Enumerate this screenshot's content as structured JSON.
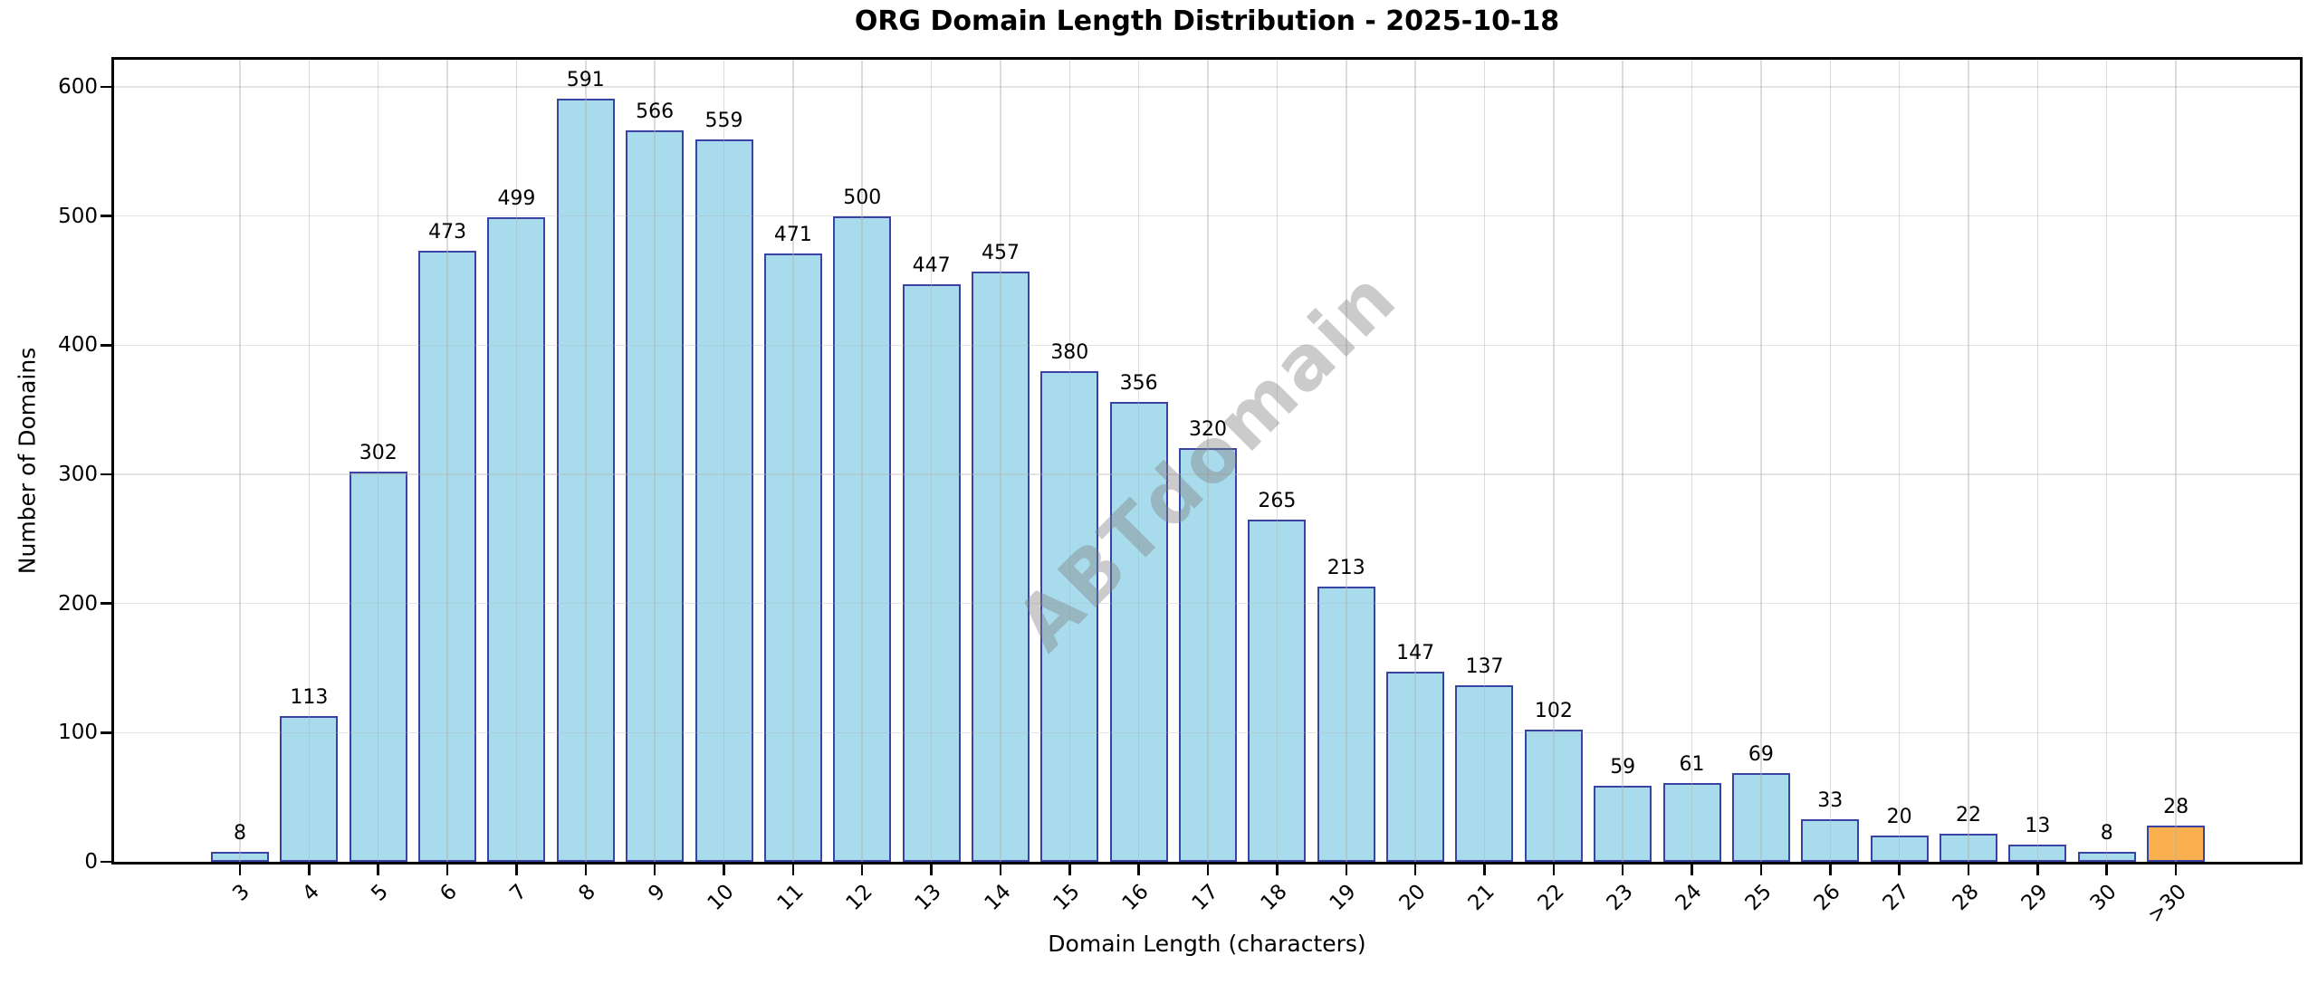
{
  "title": "ORG Domain Length Distribution - 2025-10-18",
  "watermark": "ABTdomain",
  "chart_data": {
    "type": "bar",
    "title": "ORG Domain Length Distribution - 2025-10-18",
    "xlabel": "Domain Length (characters)",
    "ylabel": "Number of Domains",
    "categories": [
      "3",
      "4",
      "5",
      "6",
      "7",
      "8",
      "9",
      "10",
      "11",
      "12",
      "13",
      "14",
      "15",
      "16",
      "17",
      "18",
      "19",
      "20",
      "21",
      "22",
      "23",
      "24",
      "25",
      "26",
      "27",
      "28",
      "29",
      "30",
      ">30"
    ],
    "values": [
      8,
      113,
      302,
      473,
      499,
      591,
      566,
      559,
      471,
      500,
      447,
      457,
      380,
      356,
      320,
      265,
      213,
      147,
      137,
      102,
      59,
      61,
      69,
      33,
      20,
      22,
      13,
      8,
      28
    ],
    "value_labels_shown": true,
    "yticks": [
      0,
      100,
      200,
      300,
      400,
      500,
      600
    ],
    "ylim": [
      0,
      621
    ],
    "grid": true,
    "legend": "none",
    "x_tick_rotation_deg": 45,
    "highlight_index": 28,
    "colors": {
      "bar_fill": "#A8DCEC",
      "bar_edge": "#3A43A4",
      "highlight_fill": "#FAB14D",
      "highlight_edge": "#3A43A4",
      "grid": "#B2B2B2",
      "watermark": "#7F7F7F",
      "text": "#000000"
    }
  }
}
